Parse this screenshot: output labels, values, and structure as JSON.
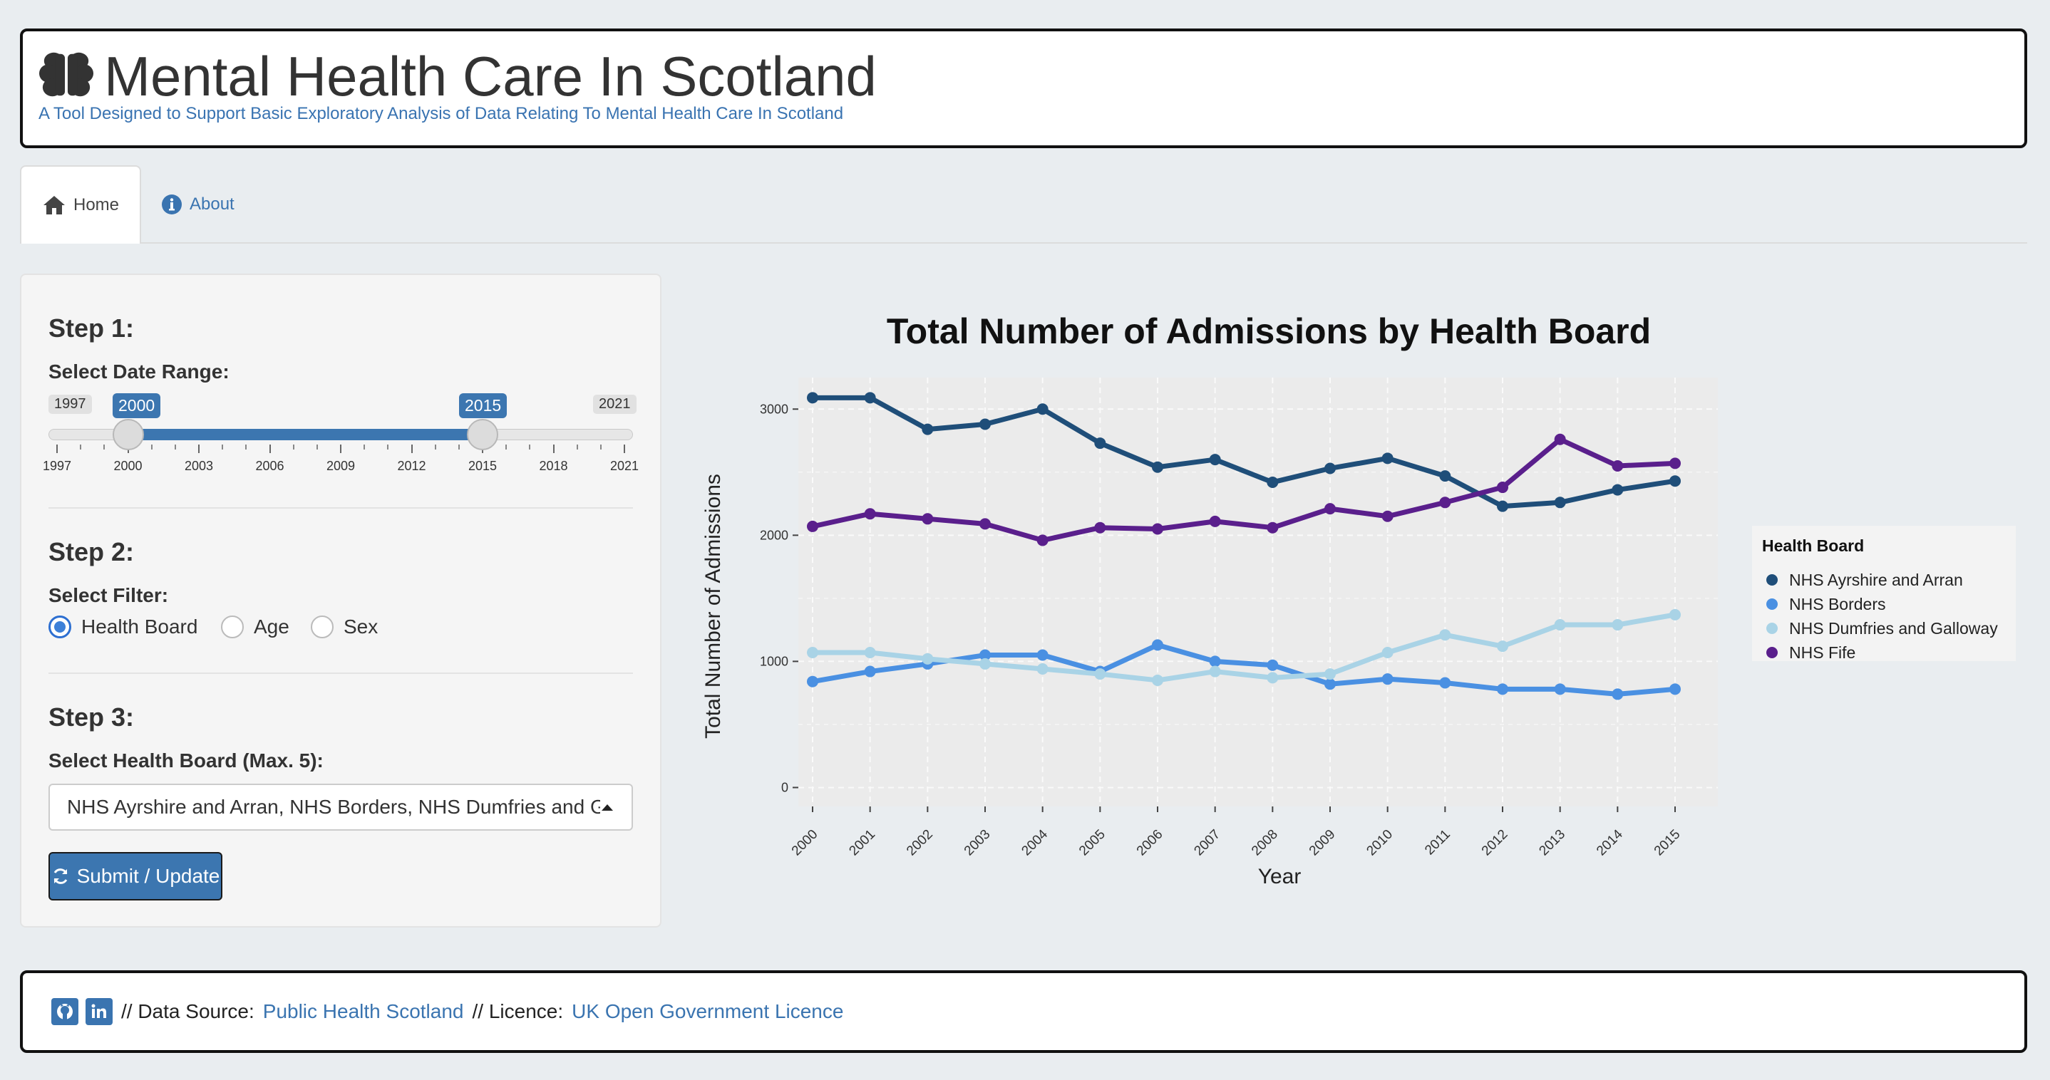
{
  "header": {
    "title": "Mental Health Care In Scotland",
    "subtitle": "A Tool Designed to Support Basic Exploratory Analysis of Data Relating To Mental Health Care In Scotland",
    "icon": "brain-icon"
  },
  "tabs": [
    {
      "label": "Home",
      "icon": "home-icon",
      "active": true
    },
    {
      "label": "About",
      "icon": "info-icon",
      "active": false
    }
  ],
  "sidebar": {
    "step1": {
      "heading": "Step 1:",
      "label": "Select Date Range:",
      "slider": {
        "min": 1997,
        "max": 2021,
        "min_label": "1997",
        "max_label": "2021",
        "from": 2000,
        "to": 2015,
        "from_label": "2000",
        "to_label": "2015",
        "ticks": [
          "1997",
          "2000",
          "2003",
          "2006",
          "2009",
          "2012",
          "2015",
          "2018",
          "2021"
        ]
      }
    },
    "step2": {
      "heading": "Step 2:",
      "label": "Select Filter:",
      "options": [
        "Health Board",
        "Age",
        "Sex"
      ],
      "selected": "Health Board"
    },
    "step3": {
      "heading": "Step 3:",
      "label": "Select Health Board (Max. 5):",
      "value": "NHS Ayrshire and Arran, NHS Borders, NHS Dumfries and Galloway, NHS Fife"
    },
    "submit_label": "Submit / Update"
  },
  "chart_data": {
    "type": "line",
    "title": "Total Number of Admissions by Health Board",
    "xlabel": "Year",
    "ylabel": "Total Number of Admissions",
    "x": [
      2000,
      2001,
      2002,
      2003,
      2004,
      2005,
      2006,
      2007,
      2008,
      2009,
      2010,
      2011,
      2012,
      2013,
      2014,
      2015
    ],
    "ylim": [
      -150,
      3250
    ],
    "yticks": [
      0,
      1000,
      2000,
      3000
    ],
    "legend_title": "Health Board",
    "legend_position": "right",
    "grid": true,
    "series": [
      {
        "name": "NHS Ayrshire and Arran",
        "color": "#1f4e79",
        "values": [
          3090,
          3090,
          2840,
          2880,
          3000,
          2730,
          2540,
          2600,
          2420,
          2530,
          2610,
          2470,
          2230,
          2260,
          2360,
          2430
        ]
      },
      {
        "name": "NHS Borders",
        "color": "#4a90e2",
        "values": [
          840,
          920,
          980,
          1050,
          1050,
          920,
          1130,
          1000,
          970,
          820,
          860,
          830,
          780,
          780,
          740,
          780
        ]
      },
      {
        "name": "NHS Dumfries and Galloway",
        "color": "#a9d3e6",
        "values": [
          1070,
          1070,
          1020,
          980,
          940,
          900,
          850,
          920,
          870,
          900,
          1070,
          1210,
          1120,
          1290,
          1290,
          1370
        ]
      },
      {
        "name": "NHS Fife",
        "color": "#5a1f8c",
        "values": [
          2070,
          2170,
          2130,
          2090,
          1960,
          2060,
          2050,
          2110,
          2060,
          2210,
          2150,
          2260,
          2380,
          2760,
          2550,
          2570
        ]
      }
    ]
  },
  "footer": {
    "github_icon": "github-icon",
    "linkedin_icon": "linkedin-icon",
    "prefix": "// Data Source:",
    "source_link": "Public Health Scotland",
    "middle": "// Licence:",
    "licence_link": "UK Open Government Licence"
  }
}
